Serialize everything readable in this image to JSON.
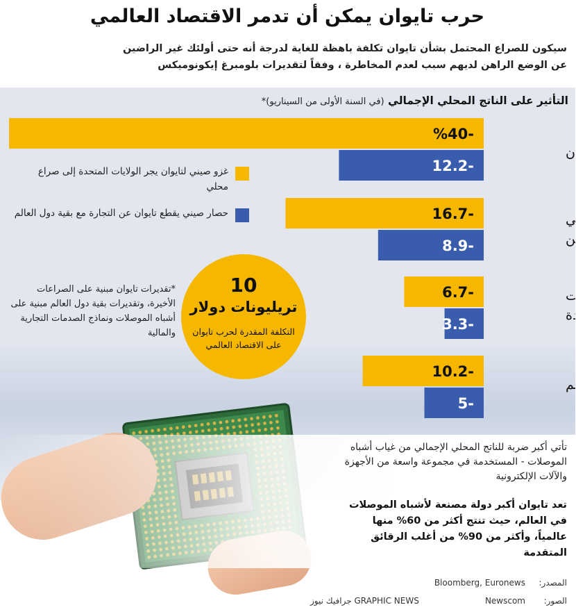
{
  "header": {
    "title": "حرب تايوان يمكن أن تدمر الاقتصاد العالمي",
    "subtitle_line1": "سيكون للصراع المحتمل بشأن تايوان تكلفة باهظة للغاية لدرجة أنه حتى أولئك غير الراضين",
    "subtitle_line2": "عن الوضع الراهن لديهم سبب لعدم المخاطرة ، وفقاً لتقديرات بلومبرغ إيكونوميكس"
  },
  "chart_heading": {
    "main": "التأثير على الناتج المحلي الإجمالي",
    "sub": "(في السنة الأولى من السيناريو)*"
  },
  "legend": {
    "items": [
      {
        "label": "غزو صيني لتايوان يجر الولايات المتحدة إلى صراع محلي",
        "color": "#f5b700"
      },
      {
        "label": "حصار صيني يقطع تايوان عن التجارة مع بقية دول العالم",
        "color": "#3a5cad"
      }
    ]
  },
  "footnote": "*تقديرات تايوان مبنية على الصراعات الأخيرة، وتقديرات بقية دول العالم مبنية على أشباه الموصلات ونماذج الصدمات التجارية والمالية",
  "highlight": {
    "number": "10",
    "unit": "تريليونات دولار",
    "description": "التكلفة المقدرة لحرب تايوان على الاقتصاد العالمي"
  },
  "chart_data": {
    "type": "bar",
    "orientation": "horizontal",
    "title": "التأثير على الناتج المحلي الإجمالي (في السنة الأولى من السيناريو)*",
    "unit": "%",
    "categories": [
      "تايوان",
      "البر الرئيسي للصين",
      "الولايات المتحدة",
      "العالم"
    ],
    "category_lines": [
      [
        "تايوان"
      ],
      [
        "البر الرئيسي",
        "للصين"
      ],
      [
        "الولايات",
        "المتحدة"
      ],
      [
        "العالم"
      ]
    ],
    "series": [
      {
        "name": "غزو صيني لتايوان يجر الولايات المتحدة إلى صراع محلي",
        "color": "#f5b700",
        "values": [
          -40,
          -16.7,
          -6.7,
          -10.2
        ],
        "labels": [
          "%40-",
          "16.7-",
          "6.7-",
          "10.2-"
        ]
      },
      {
        "name": "حصار صيني يقطع تايوان عن التجارة مع بقية دول العالم",
        "color": "#3a5cad",
        "values": [
          -12.2,
          -8.9,
          -3.3,
          -5
        ],
        "labels": [
          "12.2-",
          "8.9-",
          "3.3-",
          "5-"
        ]
      }
    ],
    "xlim": [
      -40,
      0
    ]
  },
  "notes": {
    "paragraph1": "تأتي أكبر ضربة للناتج المحلي الإجمالي من غياب أشباه الموصلات - المستخدمة في مجموعة واسعة من الأجهزة والآلات الإلكترونية",
    "paragraph2": "تعد تايوان أكبر دولة مصنعة لأشباه الموصلات في العالم، حيث تنتج أكثر من 60% منها عالمياً، وأكثر من 90% من أغلب الرقائق المتقدمة"
  },
  "sources": {
    "source_label": "المصدر:",
    "source_value": "Bloomberg, Euronews",
    "photo_label": "الصور:",
    "photo_value": "Newscom",
    "brand": "GRAPHIC NEWS جرافيك نيوز"
  }
}
